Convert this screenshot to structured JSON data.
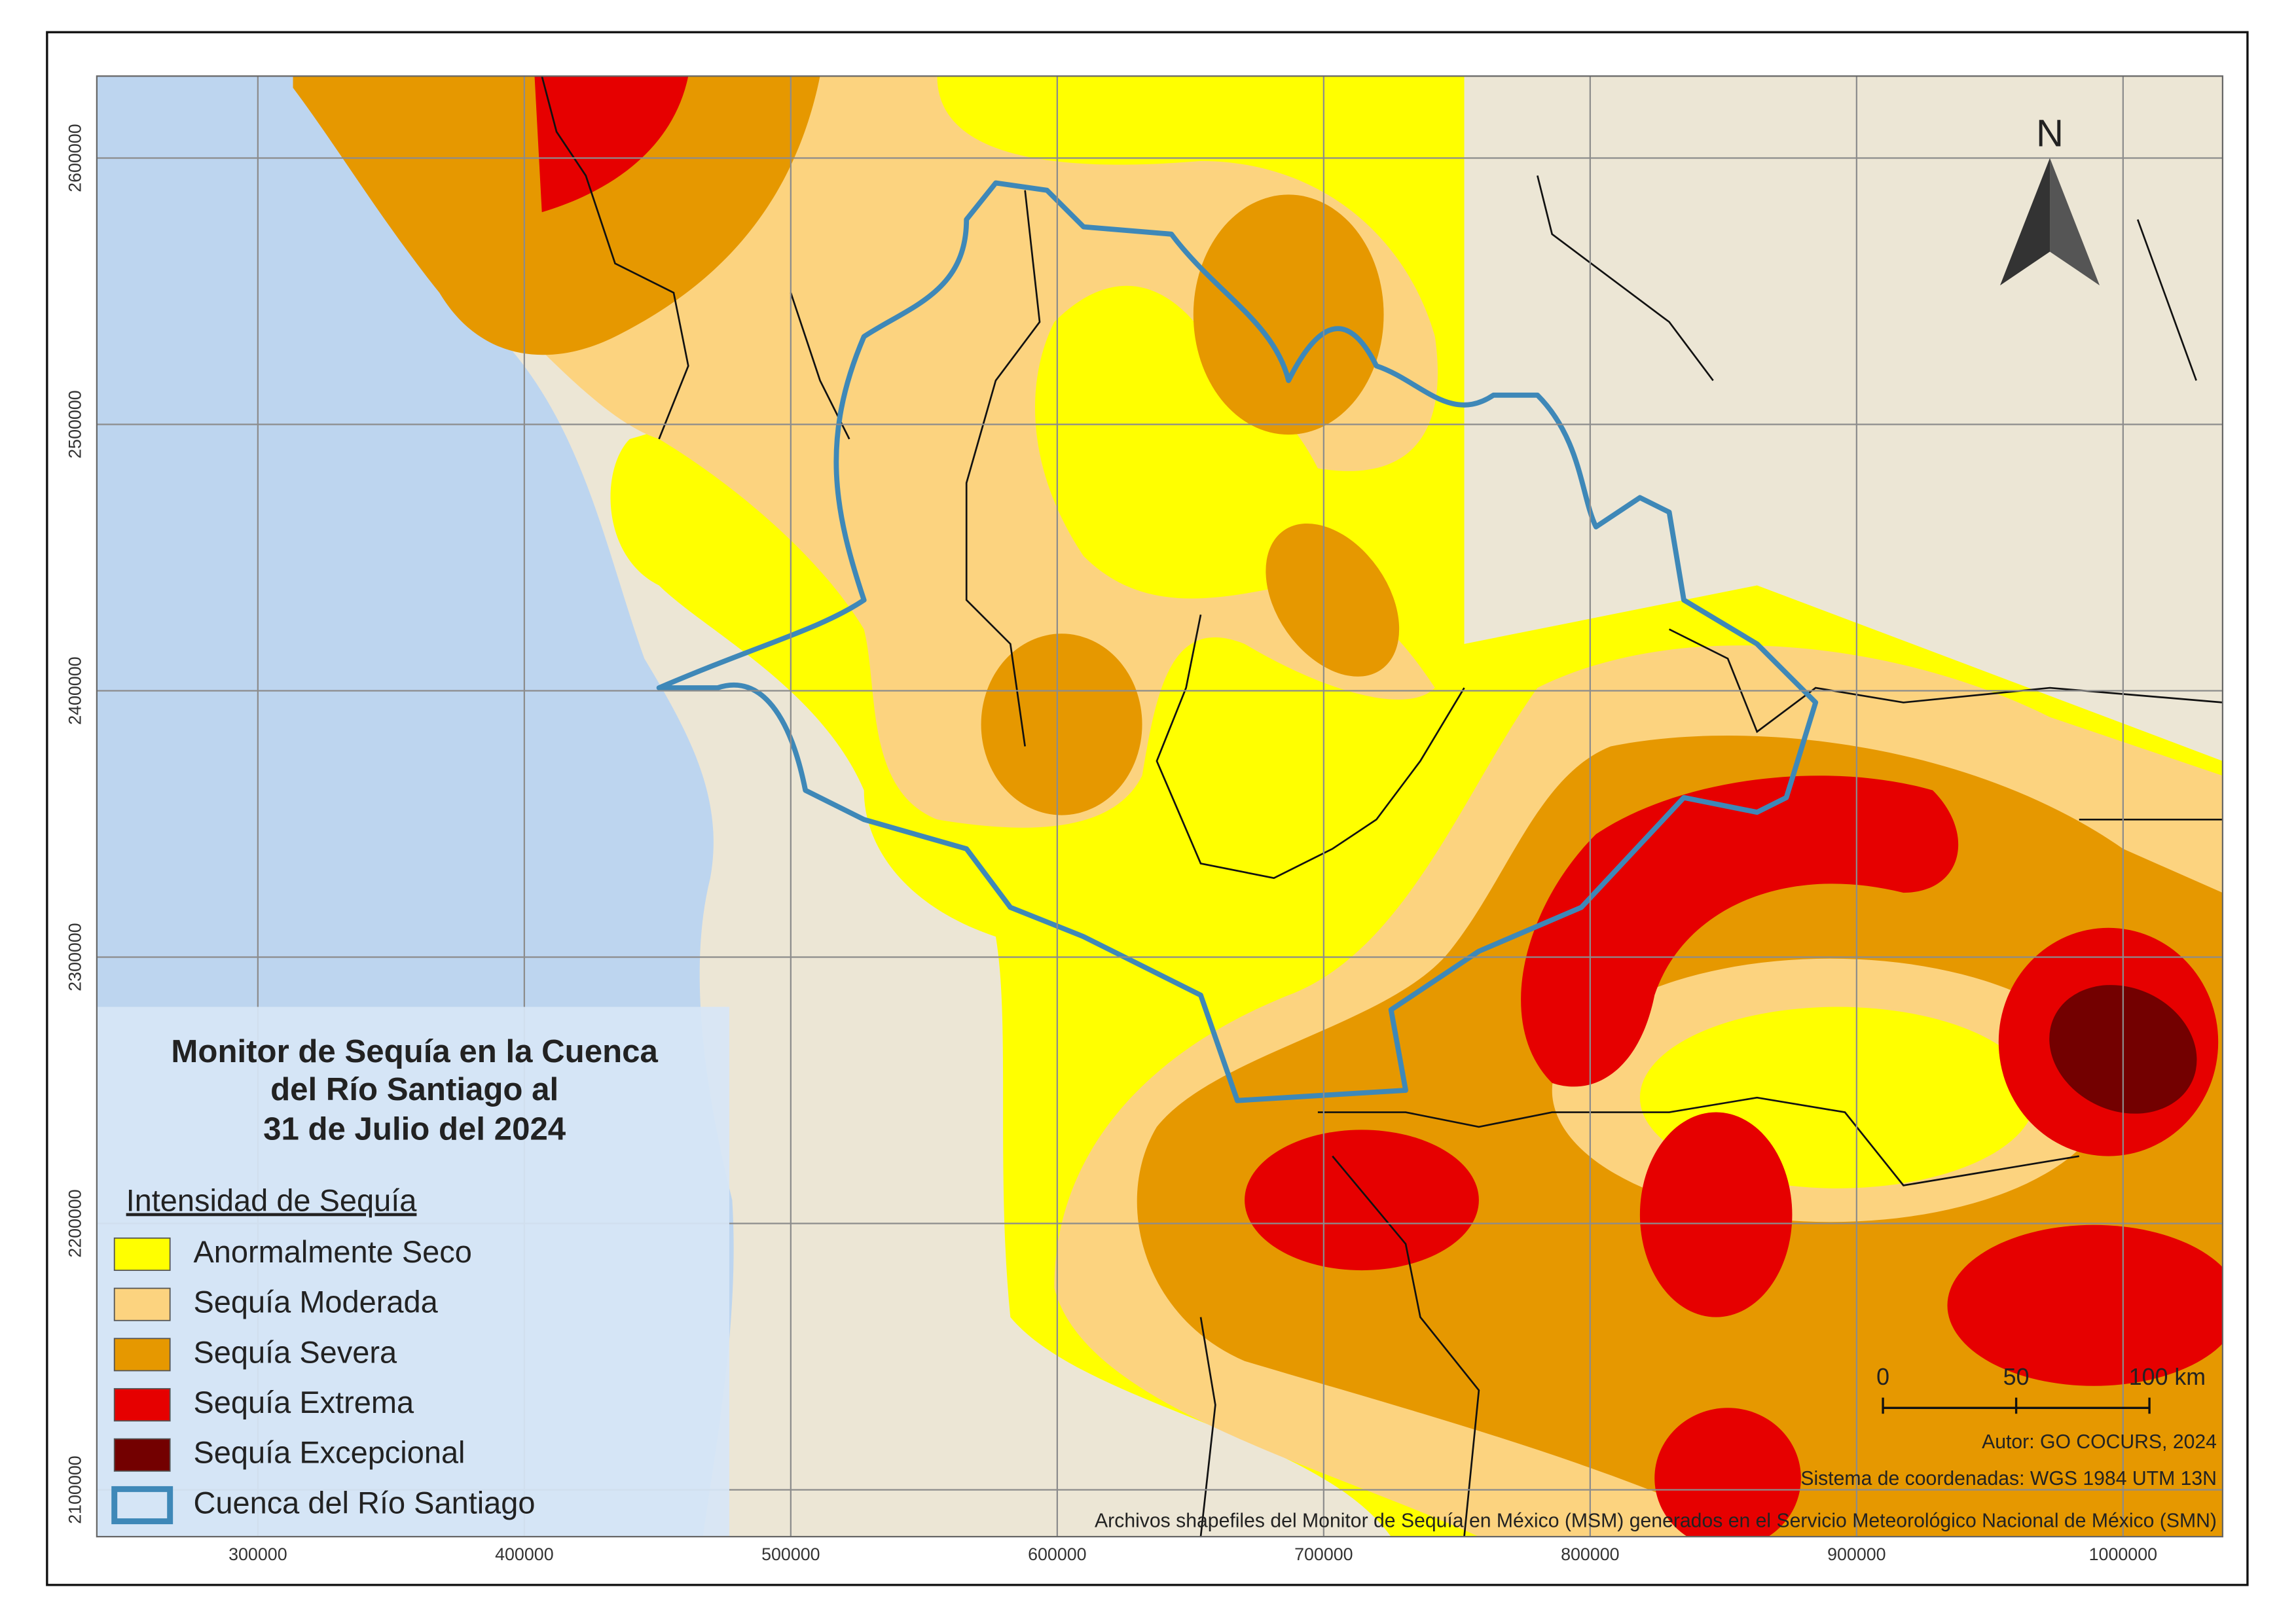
{
  "title_lines": [
    "Monitor de Sequía en la Cuenca",
    "del Río Santiago al",
    "31 de Julio del 2024"
  ],
  "legend": {
    "heading": "Intensidad de Sequía",
    "items": [
      {
        "label": "Anormalmente Seco",
        "color": "#ffff00"
      },
      {
        "label": "Sequía Moderada",
        "color": "#fcd37f"
      },
      {
        "label": "Sequía Severa",
        "color": "#e69800"
      },
      {
        "label": "Sequía Extrema",
        "color": "#e60000"
      },
      {
        "label": "Sequía Excepcional",
        "color": "#730000"
      },
      {
        "label": "Cuenca del Río Santiago",
        "color": "#3e88b8"
      }
    ]
  },
  "axes": {
    "xlim": [
      239560,
      1037363
    ],
    "ylim": [
      2082418,
      2630769
    ],
    "xticks": [
      300000,
      400000,
      500000,
      600000,
      700000,
      800000,
      900000,
      1000000
    ],
    "yticks": [
      2100000,
      2200000,
      2300000,
      2400000,
      2500000,
      2600000
    ]
  },
  "north": "N",
  "scale_bar": {
    "ticks": [
      0,
      50,
      {
        "value": 100,
        "label": "100 km"
      }
    ]
  },
  "credits": [
    "Autor: GO COCURS, 2024",
    "Sistema de coordenadas: WGS 1984 UTM 13N",
    "Archivos shapefiles del Monitor de Sequía en México (MSM) generados en el Servicio Meteorológico Nacional de México (SMN)"
  ]
}
